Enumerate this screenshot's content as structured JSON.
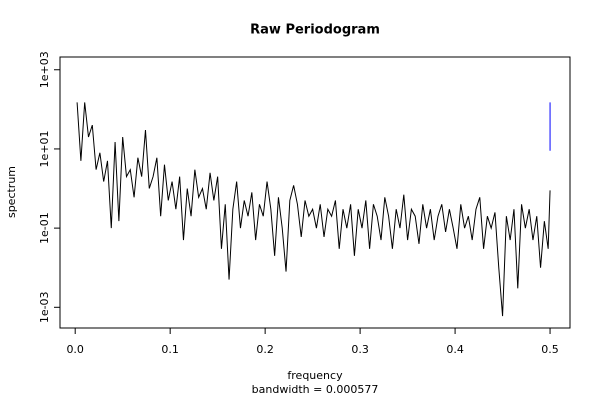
{
  "chart_data": {
    "type": "line",
    "title": "Raw Periodogram",
    "subtitle": "bandwidth = 0.000577",
    "x_label": "frequency",
    "y_label": "spectrum",
    "log_y": true,
    "color": "#000000",
    "xlim": [
      -0.016,
      0.521
    ],
    "ylim": [
      0.0003,
      2100
    ],
    "xticks": [
      {
        "value": 0,
        "label": "0.0"
      },
      0.1,
      0.2,
      0.3,
      0.4,
      0.5
    ],
    "yticks": [
      {
        "value": 0.001,
        "label": "1e-03"
      },
      {
        "value": 0.1,
        "label": "1e-01"
      },
      {
        "value": 10,
        "label": "1e+01"
      },
      {
        "value": 1000,
        "label": "1e+03"
      }
    ],
    "ci_bar": {
      "x": 0.5,
      "y_low": 9,
      "y_high": 150,
      "color": "#0000ff"
    },
    "x": [
      0.002,
      0.006,
      0.01,
      0.014,
      0.018,
      0.022,
      0.026,
      0.03,
      0.034,
      0.038,
      0.042,
      0.046,
      0.05,
      0.054,
      0.058,
      0.062,
      0.066,
      0.07,
      0.074,
      0.078,
      0.082,
      0.086,
      0.09,
      0.094,
      0.098,
      0.102,
      0.106,
      0.11,
      0.114,
      0.118,
      0.122,
      0.126,
      0.13,
      0.134,
      0.138,
      0.142,
      0.146,
      0.15,
      0.154,
      0.158,
      0.162,
      0.166,
      0.17,
      0.174,
      0.178,
      0.182,
      0.186,
      0.19,
      0.194,
      0.198,
      0.202,
      0.206,
      0.21,
      0.214,
      0.218,
      0.222,
      0.226,
      0.23,
      0.234,
      0.238,
      0.242,
      0.246,
      0.25,
      0.254,
      0.258,
      0.262,
      0.266,
      0.27,
      0.274,
      0.278,
      0.282,
      0.286,
      0.29,
      0.294,
      0.298,
      0.302,
      0.306,
      0.31,
      0.314,
      0.318,
      0.322,
      0.326,
      0.33,
      0.334,
      0.338,
      0.342,
      0.346,
      0.35,
      0.354,
      0.358,
      0.362,
      0.366,
      0.37,
      0.374,
      0.378,
      0.382,
      0.386,
      0.39,
      0.394,
      0.398,
      0.402,
      0.406,
      0.41,
      0.414,
      0.418,
      0.422,
      0.426,
      0.43,
      0.434,
      0.438,
      0.442,
      0.446,
      0.45,
      0.454,
      0.458,
      0.462,
      0.466,
      0.47,
      0.474,
      0.478,
      0.482,
      0.486,
      0.49,
      0.494,
      0.498,
      0.5
    ],
    "values": [
      150,
      5,
      150,
      20,
      40,
      3,
      8,
      1.5,
      5,
      0.1,
      15,
      0.15,
      20,
      2,
      3,
      0.6,
      6,
      2,
      30,
      1,
      2,
      6,
      0.2,
      4,
      0.5,
      1.5,
      0.3,
      2,
      0.05,
      1,
      0.2,
      3,
      0.6,
      1,
      0.3,
      2.5,
      0.5,
      2,
      0.03,
      0.4,
      0.005,
      0.3,
      1.5,
      0.1,
      0.5,
      0.2,
      0.8,
      0.05,
      0.4,
      0.2,
      1.5,
      0.3,
      0.02,
      0.6,
      0.1,
      0.008,
      0.5,
      1.2,
      0.4,
      0.06,
      0.5,
      0.2,
      0.3,
      0.1,
      0.4,
      0.06,
      0.3,
      0.2,
      0.5,
      0.03,
      0.3,
      0.1,
      0.4,
      0.02,
      0.3,
      0.1,
      0.5,
      0.03,
      0.4,
      0.2,
      0.05,
      0.6,
      0.2,
      0.03,
      0.3,
      0.1,
      0.7,
      0.05,
      0.3,
      0.2,
      0.04,
      0.4,
      0.1,
      0.3,
      0.05,
      0.2,
      0.4,
      0.08,
      0.3,
      0.1,
      0.03,
      0.4,
      0.1,
      0.2,
      0.05,
      0.3,
      0.6,
      0.03,
      0.2,
      0.1,
      0.25,
      0.01,
      0.0006,
      0.2,
      0.05,
      0.3,
      0.003,
      0.4,
      0.1,
      0.3,
      0.05,
      0.2,
      0.01,
      0.15,
      0.03,
      0.9
    ]
  }
}
